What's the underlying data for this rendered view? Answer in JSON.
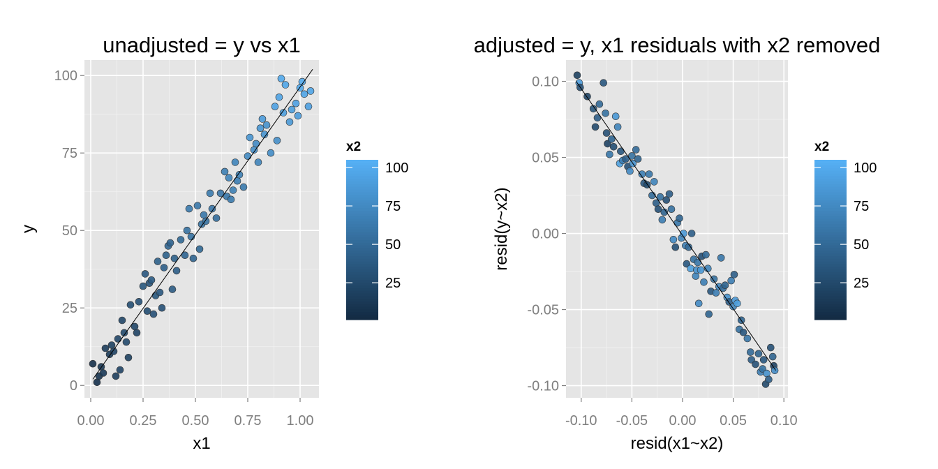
{
  "chart_data": [
    {
      "type": "scatter",
      "title": "unadjusted = y vs x1",
      "xlabel": "x1",
      "ylabel": "y",
      "xlim": [
        -0.03,
        1.09
      ],
      "ylim": [
        -4,
        105
      ],
      "x_ticks": [
        0,
        0.25,
        0.5,
        0.75,
        1.0
      ],
      "x_tick_labels": [
        "0.00",
        "0.25",
        "0.50",
        "0.75",
        "1.00"
      ],
      "y_ticks": [
        0,
        25,
        50,
        75,
        100
      ],
      "y_tick_labels": [
        "0",
        "25",
        "50",
        "75",
        "100"
      ],
      "grid": true,
      "fit_line": {
        "x": [
          0.01,
          1.06
        ],
        "y": [
          2,
          102
        ]
      },
      "points": [
        [
          0.01,
          7,
          5
        ],
        [
          0.03,
          1,
          6
        ],
        [
          0.04,
          3,
          8
        ],
        [
          0.05,
          6,
          10
        ],
        [
          0.06,
          4,
          12
        ],
        [
          0.07,
          12,
          15
        ],
        [
          0.09,
          10,
          14
        ],
        [
          0.1,
          13,
          18
        ],
        [
          0.11,
          11,
          20
        ],
        [
          0.12,
          3,
          16
        ],
        [
          0.13,
          15,
          22
        ],
        [
          0.14,
          5,
          20
        ],
        [
          0.15,
          21,
          22
        ],
        [
          0.16,
          17,
          25
        ],
        [
          0.17,
          14,
          24
        ],
        [
          0.18,
          9,
          18
        ],
        [
          0.19,
          26,
          28
        ],
        [
          0.21,
          19,
          22
        ],
        [
          0.22,
          17,
          20
        ],
        [
          0.23,
          27,
          30
        ],
        [
          0.25,
          32,
          34
        ],
        [
          0.26,
          36,
          35
        ],
        [
          0.27,
          24,
          28
        ],
        [
          0.28,
          33,
          32
        ],
        [
          0.29,
          34,
          38
        ],
        [
          0.3,
          23,
          30
        ],
        [
          0.31,
          29,
          34
        ],
        [
          0.32,
          40,
          42
        ],
        [
          0.33,
          30,
          36
        ],
        [
          0.34,
          25,
          30
        ],
        [
          0.35,
          38,
          40
        ],
        [
          0.36,
          42,
          42
        ],
        [
          0.37,
          45,
          46
        ],
        [
          0.38,
          46,
          44
        ],
        [
          0.39,
          31,
          38
        ],
        [
          0.4,
          41,
          42
        ],
        [
          0.41,
          37,
          40
        ],
        [
          0.43,
          47,
          48
        ],
        [
          0.45,
          42,
          46
        ],
        [
          0.46,
          50,
          55
        ],
        [
          0.47,
          57,
          62
        ],
        [
          0.48,
          48,
          56
        ],
        [
          0.49,
          41,
          45
        ],
        [
          0.51,
          58,
          60
        ],
        [
          0.52,
          44,
          48
        ],
        [
          0.53,
          52,
          56
        ],
        [
          0.54,
          55,
          60
        ],
        [
          0.55,
          53,
          55
        ],
        [
          0.57,
          62,
          62
        ],
        [
          0.58,
          57,
          58
        ],
        [
          0.6,
          54,
          52
        ],
        [
          0.62,
          62,
          58
        ],
        [
          0.64,
          69,
          66
        ],
        [
          0.65,
          61,
          60
        ],
        [
          0.66,
          67,
          70
        ],
        [
          0.67,
          60,
          62
        ],
        [
          0.68,
          63,
          66
        ],
        [
          0.69,
          72,
          70
        ],
        [
          0.7,
          66,
          65
        ],
        [
          0.71,
          68,
          66
        ],
        [
          0.73,
          64,
          62
        ],
        [
          0.75,
          74,
          74
        ],
        [
          0.76,
          80,
          82
        ],
        [
          0.78,
          76,
          78
        ],
        [
          0.79,
          78,
          75
        ],
        [
          0.8,
          72,
          70
        ],
        [
          0.81,
          83,
          84
        ],
        [
          0.82,
          86,
          88
        ],
        [
          0.83,
          81,
          82
        ],
        [
          0.84,
          84,
          80
        ],
        [
          0.86,
          75,
          76
        ],
        [
          0.88,
          90,
          92
        ],
        [
          0.89,
          79,
          78
        ],
        [
          0.9,
          93,
          94
        ],
        [
          0.91,
          99,
          98
        ],
        [
          0.92,
          88,
          90
        ],
        [
          0.93,
          97,
          96
        ],
        [
          0.95,
          85,
          86
        ],
        [
          0.96,
          89,
          90
        ],
        [
          0.98,
          91,
          92
        ],
        [
          0.99,
          87,
          88
        ],
        [
          1.0,
          96,
          98
        ],
        [
          1.01,
          98,
          100
        ],
        [
          1.02,
          94,
          95
        ],
        [
          1.04,
          90,
          92
        ],
        [
          1.05,
          95,
          96
        ]
      ]
    },
    {
      "type": "scatter",
      "title": "adjusted = y, x1 residuals with x2 removed",
      "xlabel": "resid(x1~x2)",
      "ylabel": "resid(y~x2)",
      "xlim": [
        -0.115,
        0.104
      ],
      "ylim": [
        -0.108,
        0.114
      ],
      "x_ticks": [
        -0.1,
        -0.05,
        0.0,
        0.05,
        0.1
      ],
      "x_tick_labels": [
        "-0.10",
        "-0.05",
        "0.00",
        "0.05",
        "0.10"
      ],
      "y_ticks": [
        -0.1,
        -0.05,
        0.0,
        0.05,
        0.1
      ],
      "y_tick_labels": [
        "-0.10",
        "-0.05",
        "0.00",
        "0.05",
        "0.10"
      ],
      "grid": true,
      "fit_line": {
        "x": [
          -0.105,
          0.092
        ],
        "y": [
          0.1,
          -0.09
        ]
      },
      "points": [
        [
          -0.104,
          0.104,
          18
        ],
        [
          -0.102,
          0.099,
          88
        ],
        [
          -0.101,
          0.096,
          30
        ],
        [
          -0.094,
          0.09,
          22
        ],
        [
          -0.088,
          0.082,
          34
        ],
        [
          -0.086,
          0.07,
          25
        ],
        [
          -0.084,
          0.076,
          40
        ],
        [
          -0.082,
          0.085,
          50
        ],
        [
          -0.078,
          0.099,
          35
        ],
        [
          -0.076,
          0.079,
          55
        ],
        [
          -0.075,
          0.066,
          30
        ],
        [
          -0.074,
          0.059,
          20
        ],
        [
          -0.072,
          0.052,
          60
        ],
        [
          -0.07,
          0.062,
          45
        ],
        [
          -0.068,
          0.057,
          28
        ],
        [
          -0.066,
          0.077,
          85
        ],
        [
          -0.064,
          0.07,
          70
        ],
        [
          -0.062,
          0.046,
          90
        ],
        [
          -0.061,
          0.054,
          35
        ],
        [
          -0.059,
          0.048,
          65
        ],
        [
          -0.056,
          0.049,
          40
        ],
        [
          -0.054,
          0.044,
          30
        ],
        [
          -0.052,
          0.041,
          75
        ],
        [
          -0.05,
          0.051,
          55
        ],
        [
          -0.049,
          0.046,
          80
        ],
        [
          -0.046,
          0.055,
          50
        ],
        [
          -0.044,
          0.049,
          45
        ],
        [
          -0.04,
          0.039,
          65
        ],
        [
          -0.038,
          0.033,
          35
        ],
        [
          -0.035,
          0.032,
          25
        ],
        [
          -0.033,
          0.039,
          60
        ],
        [
          -0.03,
          0.025,
          50
        ],
        [
          -0.028,
          0.034,
          70
        ],
        [
          -0.026,
          0.02,
          40
        ],
        [
          -0.024,
          0.016,
          30
        ],
        [
          -0.022,
          0.024,
          55
        ],
        [
          -0.02,
          0.009,
          65
        ],
        [
          -0.018,
          0.014,
          45
        ],
        [
          -0.016,
          0.022,
          30
        ],
        [
          -0.013,
          0.026,
          40
        ],
        [
          -0.011,
          0.016,
          55
        ],
        [
          -0.009,
          -0.004,
          75
        ],
        [
          -0.007,
          -0.009,
          30
        ],
        [
          -0.005,
          0.007,
          60
        ],
        [
          -0.003,
          0.01,
          45
        ],
        [
          -0.001,
          -0.003,
          70
        ],
        [
          0.001,
          0.0,
          85
        ],
        [
          0.003,
          -0.008,
          65
        ],
        [
          0.004,
          -0.02,
          35
        ],
        [
          0.006,
          -0.009,
          50
        ],
        [
          0.008,
          -0.023,
          90
        ],
        [
          0.009,
          0.0,
          40
        ],
        [
          0.011,
          -0.017,
          55
        ],
        [
          0.013,
          -0.028,
          70
        ],
        [
          0.014,
          -0.024,
          80
        ],
        [
          0.015,
          -0.019,
          60
        ],
        [
          0.016,
          -0.046,
          75
        ],
        [
          0.018,
          -0.024,
          85
        ],
        [
          0.019,
          -0.015,
          30
        ],
        [
          0.021,
          -0.032,
          65
        ],
        [
          0.023,
          -0.014,
          50
        ],
        [
          0.025,
          -0.023,
          70
        ],
        [
          0.026,
          -0.053,
          45
        ],
        [
          0.028,
          -0.038,
          35
        ],
        [
          0.031,
          -0.03,
          55
        ],
        [
          0.033,
          -0.039,
          65
        ],
        [
          0.036,
          -0.035,
          75
        ],
        [
          0.038,
          -0.016,
          60
        ],
        [
          0.04,
          -0.036,
          50
        ],
        [
          0.042,
          -0.034,
          45
        ],
        [
          0.044,
          -0.042,
          80
        ],
        [
          0.046,
          -0.045,
          40
        ],
        [
          0.048,
          -0.031,
          65
        ],
        [
          0.05,
          -0.048,
          70
        ],
        [
          0.051,
          -0.027,
          40
        ],
        [
          0.052,
          -0.044,
          85
        ],
        [
          0.054,
          -0.046,
          90
        ],
        [
          0.056,
          -0.063,
          55
        ],
        [
          0.058,
          -0.057,
          45
        ],
        [
          0.06,
          -0.065,
          35
        ],
        [
          0.064,
          -0.069,
          60
        ],
        [
          0.067,
          -0.078,
          50
        ],
        [
          0.068,
          -0.083,
          40
        ],
        [
          0.072,
          -0.086,
          30
        ],
        [
          0.075,
          -0.079,
          45
        ],
        [
          0.077,
          -0.091,
          65
        ],
        [
          0.079,
          -0.089,
          55
        ],
        [
          0.08,
          -0.083,
          35
        ],
        [
          0.082,
          -0.099,
          25
        ],
        [
          0.083,
          -0.092,
          80
        ],
        [
          0.085,
          -0.096,
          40
        ],
        [
          0.087,
          -0.075,
          30
        ],
        [
          0.089,
          -0.081,
          45
        ],
        [
          0.09,
          -0.087,
          20
        ],
        [
          0.091,
          -0.09,
          75
        ]
      ]
    }
  ],
  "legend": {
    "title": "x2",
    "ticks": [
      25,
      50,
      75,
      100
    ],
    "tick_labels": [
      "25",
      "50",
      "75",
      "100"
    ],
    "range": [
      1,
      105
    ],
    "low_color": "#132b43",
    "high_color": "#56b1f7"
  }
}
